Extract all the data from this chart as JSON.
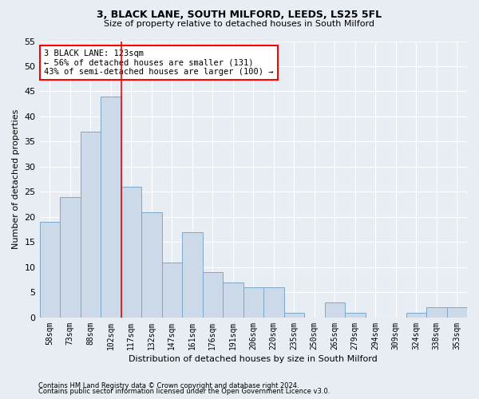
{
  "title1": "3, BLACK LANE, SOUTH MILFORD, LEEDS, LS25 5FL",
  "title2": "Size of property relative to detached houses in South Milford",
  "xlabel": "Distribution of detached houses by size in South Milford",
  "ylabel": "Number of detached properties",
  "footnote1": "Contains HM Land Registry data © Crown copyright and database right 2024.",
  "footnote2": "Contains public sector information licensed under the Open Government Licence v3.0.",
  "categories": [
    "58sqm",
    "73sqm",
    "88sqm",
    "102sqm",
    "117sqm",
    "132sqm",
    "147sqm",
    "161sqm",
    "176sqm",
    "191sqm",
    "206sqm",
    "220sqm",
    "235sqm",
    "250sqm",
    "265sqm",
    "279sqm",
    "294sqm",
    "309sqm",
    "324sqm",
    "338sqm",
    "353sqm"
  ],
  "values": [
    19,
    24,
    37,
    44,
    26,
    21,
    11,
    17,
    9,
    7,
    6,
    6,
    1,
    0,
    3,
    1,
    0,
    0,
    1,
    2,
    2
  ],
  "bar_color": "#ccd9e8",
  "bar_edge_color": "#7ca8c8",
  "bg_color": "#e8edf4",
  "annotation_line1": "3 BLACK LANE: 123sqm",
  "annotation_line2": "← 56% of detached houses are smaller (131)",
  "annotation_line3": "43% of semi-detached houses are larger (100) →",
  "annotation_box_color": "white",
  "annotation_box_edge": "red",
  "vline_color": "red",
  "ylim": [
    0,
    55
  ],
  "yticks": [
    0,
    5,
    10,
    15,
    20,
    25,
    30,
    35,
    40,
    45,
    50,
    55
  ],
  "grid_color": "white",
  "grid_lw": 0.8
}
